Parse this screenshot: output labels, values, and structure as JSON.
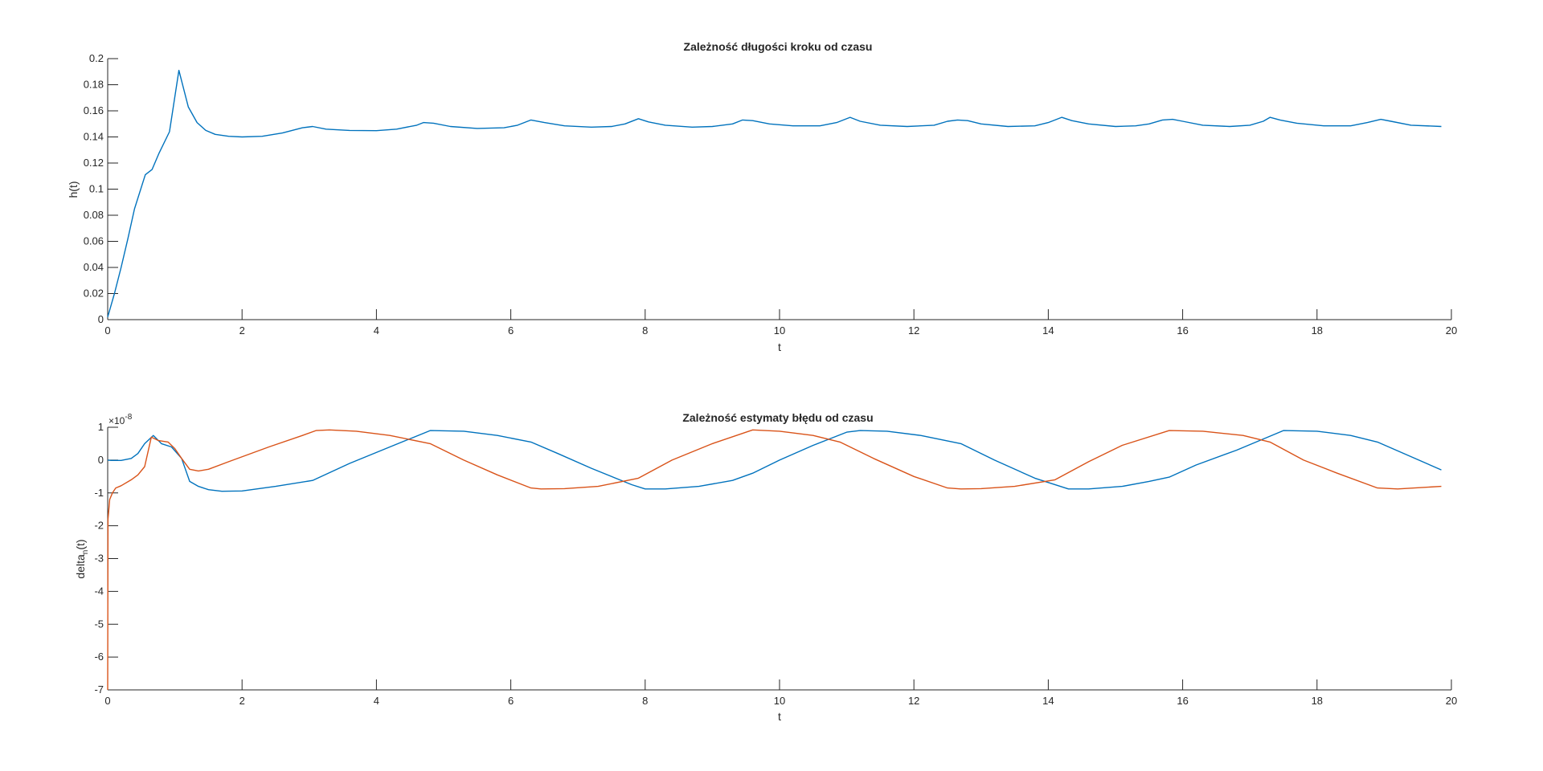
{
  "chart_data": [
    {
      "type": "line",
      "title": "Zależność długości kroku od czasu",
      "xlabel": "t",
      "ylabel": "h(t)",
      "xlim": [
        0,
        20
      ],
      "ylim": [
        0,
        0.2
      ],
      "xticks": [
        0,
        2,
        4,
        6,
        8,
        10,
        12,
        14,
        16,
        18,
        20
      ],
      "xtick_labels": [
        "0",
        "2",
        "4",
        "6",
        "8",
        "10",
        "12",
        "14",
        "16",
        "18",
        "20"
      ],
      "yticks": [
        0,
        0.02,
        0.04,
        0.06,
        0.08,
        0.1,
        0.12,
        0.14,
        0.16,
        0.18,
        0.2
      ],
      "ytick_labels": [
        "0",
        "0.02",
        "0.04",
        "0.06",
        "0.08",
        "0.1",
        "0.12",
        "0.14",
        "0.16",
        "0.18",
        "0.2"
      ],
      "grid": false,
      "series": [
        {
          "color": "#0072BD",
          "x": [
            0,
            0.1,
            0.2,
            0.3,
            0.4,
            0.56,
            0.66,
            0.76,
            0.92,
            1.06,
            1.2,
            1.33,
            1.46,
            1.6,
            1.8,
            2.0,
            2.3,
            2.6,
            2.9,
            3.05,
            3.25,
            3.6,
            4.0,
            4.3,
            4.6,
            4.7,
            4.85,
            5.1,
            5.5,
            5.9,
            6.1,
            6.3,
            6.5,
            6.8,
            7.2,
            7.5,
            7.7,
            7.9,
            8.05,
            8.3,
            8.7,
            9.0,
            9.3,
            9.45,
            9.6,
            9.85,
            10.2,
            10.6,
            10.85,
            11.05,
            11.2,
            11.5,
            11.9,
            12.3,
            12.5,
            12.65,
            12.8,
            13.0,
            13.4,
            13.8,
            14.0,
            14.2,
            14.35,
            14.6,
            15.0,
            15.3,
            15.5,
            15.7,
            15.85,
            16.0,
            16.3,
            16.7,
            17.0,
            17.2,
            17.3,
            17.45,
            17.7,
            18.1,
            18.5,
            18.75,
            18.95,
            19.1,
            19.4,
            19.85
          ],
          "y": [
            0.002,
            0.02,
            0.04,
            0.062,
            0.085,
            0.111,
            0.115,
            0.127,
            0.144,
            0.191,
            0.163,
            0.151,
            0.145,
            0.142,
            0.1405,
            0.14,
            0.1405,
            0.143,
            0.147,
            0.148,
            0.146,
            0.145,
            0.1448,
            0.146,
            0.149,
            0.151,
            0.1505,
            0.148,
            0.1465,
            0.147,
            0.149,
            0.153,
            0.151,
            0.1485,
            0.1475,
            0.148,
            0.15,
            0.154,
            0.1515,
            0.149,
            0.1475,
            0.148,
            0.15,
            0.153,
            0.1525,
            0.15,
            0.1485,
            0.1485,
            0.151,
            0.155,
            0.152,
            0.149,
            0.148,
            0.149,
            0.152,
            0.153,
            0.1525,
            0.15,
            0.148,
            0.1485,
            0.151,
            0.155,
            0.1525,
            0.15,
            0.148,
            0.1485,
            0.15,
            0.153,
            0.1535,
            0.152,
            0.149,
            0.148,
            0.149,
            0.152,
            0.155,
            0.153,
            0.1505,
            0.1485,
            0.1485,
            0.151,
            0.1535,
            0.152,
            0.149,
            0.148
          ]
        }
      ]
    },
    {
      "type": "line",
      "title": "Zależność estymaty błędu od czasu",
      "xlabel": "t",
      "ylabel": "delta_n(t)",
      "ylabel_main": "delta",
      "ylabel_sub": "n",
      "ylabel_tail": "(t)",
      "y_exponent_base": "×10",
      "y_exponent_power": "-8",
      "xlim": [
        0,
        20
      ],
      "ylim": [
        -7,
        1
      ],
      "xticks": [
        0,
        2,
        4,
        6,
        8,
        10,
        12,
        14,
        16,
        18,
        20
      ],
      "xtick_labels": [
        "0",
        "2",
        "4",
        "6",
        "8",
        "10",
        "12",
        "14",
        "16",
        "18",
        "20"
      ],
      "yticks": [
        -7,
        -6,
        -5,
        -4,
        -3,
        -2,
        -1,
        0,
        1
      ],
      "ytick_labels": [
        "-7",
        "-6",
        "-5",
        "-4",
        "-3",
        "-2",
        "-1",
        "0",
        "1"
      ],
      "grid": false,
      "series": [
        {
          "color": "#0072BD",
          "x": [
            0,
            0.05,
            0.2,
            0.35,
            0.45,
            0.55,
            0.68,
            0.8,
            0.95,
            1.1,
            1.22,
            1.35,
            1.5,
            1.7,
            2.0,
            2.5,
            3.05,
            3.6,
            4.2,
            4.8,
            5.3,
            5.8,
            6.3,
            6.7,
            7.2,
            7.8,
            8.0,
            8.3,
            8.8,
            9.3,
            9.6,
            10.0,
            10.5,
            11.0,
            11.2,
            11.6,
            12.1,
            12.7,
            13.2,
            13.8,
            14.3,
            14.6,
            15.1,
            15.5,
            15.8,
            16.2,
            16.8,
            17.5,
            18.0,
            18.5,
            18.9,
            19.85
          ],
          "y": [
            0,
            -0.01,
            -0.01,
            0.05,
            0.2,
            0.5,
            0.75,
            0.5,
            0.4,
            0.05,
            -0.65,
            -0.8,
            -0.9,
            -0.95,
            -0.94,
            -0.8,
            -0.62,
            -0.1,
            0.4,
            0.9,
            0.88,
            0.75,
            0.55,
            0.2,
            -0.25,
            -0.75,
            -0.88,
            -0.88,
            -0.8,
            -0.62,
            -0.4,
            0.0,
            0.45,
            0.85,
            0.9,
            0.88,
            0.75,
            0.5,
            0.0,
            -0.55,
            -0.88,
            -0.88,
            -0.8,
            -0.65,
            -0.52,
            -0.15,
            0.3,
            0.9,
            0.88,
            0.75,
            0.55,
            -0.3
          ]
        },
        {
          "color": "#D95319",
          "x": [
            0,
            0.005,
            0.03,
            0.07,
            0.12,
            0.2,
            0.35,
            0.45,
            0.55,
            0.65,
            0.75,
            0.9,
            1.0,
            1.1,
            1.22,
            1.35,
            1.5,
            1.8,
            2.4,
            2.9,
            3.1,
            3.3,
            3.7,
            4.2,
            4.8,
            5.3,
            5.8,
            6.3,
            6.45,
            6.8,
            7.3,
            7.9,
            8.4,
            9.0,
            9.6,
            10.0,
            10.5,
            10.9,
            11.4,
            12.0,
            12.5,
            12.7,
            13.0,
            13.5,
            14.1,
            14.6,
            15.1,
            15.8,
            16.3,
            16.9,
            17.3,
            17.8,
            18.3,
            18.9,
            19.2,
            19.85
          ],
          "y": [
            -7,
            -1.8,
            -1.2,
            -1.0,
            -0.85,
            -0.78,
            -0.6,
            -0.45,
            -0.2,
            0.7,
            0.6,
            0.55,
            0.35,
            0.05,
            -0.28,
            -0.33,
            -0.28,
            -0.05,
            0.4,
            0.75,
            0.9,
            0.92,
            0.88,
            0.75,
            0.5,
            0.0,
            -0.45,
            -0.85,
            -0.88,
            -0.87,
            -0.8,
            -0.55,
            0.0,
            0.5,
            0.92,
            0.88,
            0.75,
            0.55,
            0.05,
            -0.5,
            -0.85,
            -0.88,
            -0.87,
            -0.8,
            -0.6,
            -0.05,
            0.45,
            0.9,
            0.88,
            0.75,
            0.55,
            0.0,
            -0.4,
            -0.85,
            -0.88,
            -0.8
          ]
        }
      ]
    }
  ]
}
